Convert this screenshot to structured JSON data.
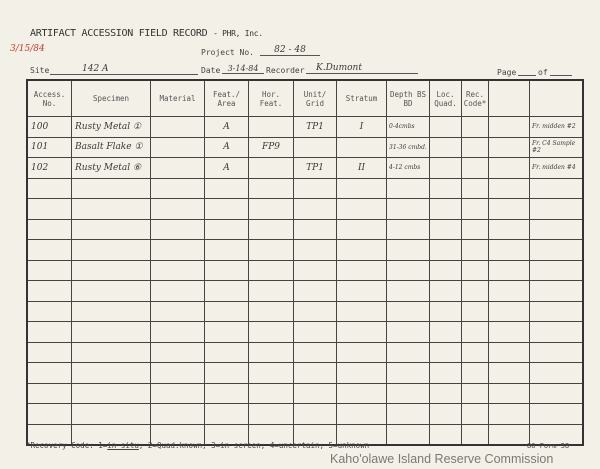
{
  "form": {
    "title": "ARTIFACT ACCESSION FIELD RECORD",
    "org": "- PHR, Inc.",
    "corner_date": "3/15/84",
    "project_label": "Project No.",
    "project_value": "82 - 48",
    "site_label": "Site",
    "site_value": "142 A",
    "date_label": "Date",
    "date_value": "3-14-84",
    "recorder_label": "Recorder",
    "recorder_value": "K.Dumont",
    "page_label": "Page",
    "of_label": "of"
  },
  "table": {
    "headers": [
      "Access. No.",
      "Specimen",
      "Material",
      "Feat./ Area",
      "Hor. Feat.",
      "Unit/ Grid",
      "Stratum",
      "Depth BS BD",
      "Loc. Quad.",
      "Rec. Code*",
      "",
      ""
    ],
    "rows": [
      [
        "100",
        "Rusty Metal ①",
        "",
        "A",
        "",
        "TP1",
        "I",
        "0-4cmbs",
        "",
        "",
        "",
        "Fr. midden #2"
      ],
      [
        "101",
        "Basalt Flake ①",
        "",
        "A",
        "FP9",
        "",
        "",
        "31-36 cmbd.",
        "",
        "",
        "",
        "Fr. C4 Sample #2"
      ],
      [
        "102",
        "Rusty Metal ⑥",
        "",
        "A",
        "",
        "TP1",
        "II",
        "4-12 cmbs",
        "",
        "",
        "",
        "Fr. midden #4"
      ]
    ],
    "empty_rows": 13
  },
  "footer": {
    "recovery_prefix": "*Recovery Code: 1=",
    "recovery_insitu": "in situ",
    "recovery_rest": "; 2=Quad.known; 3=in screen; 4=uncertain; 5=unknown",
    "form_no": "80  Form 58",
    "watermark": "Kaho'olawe Island Reserve Commission"
  }
}
